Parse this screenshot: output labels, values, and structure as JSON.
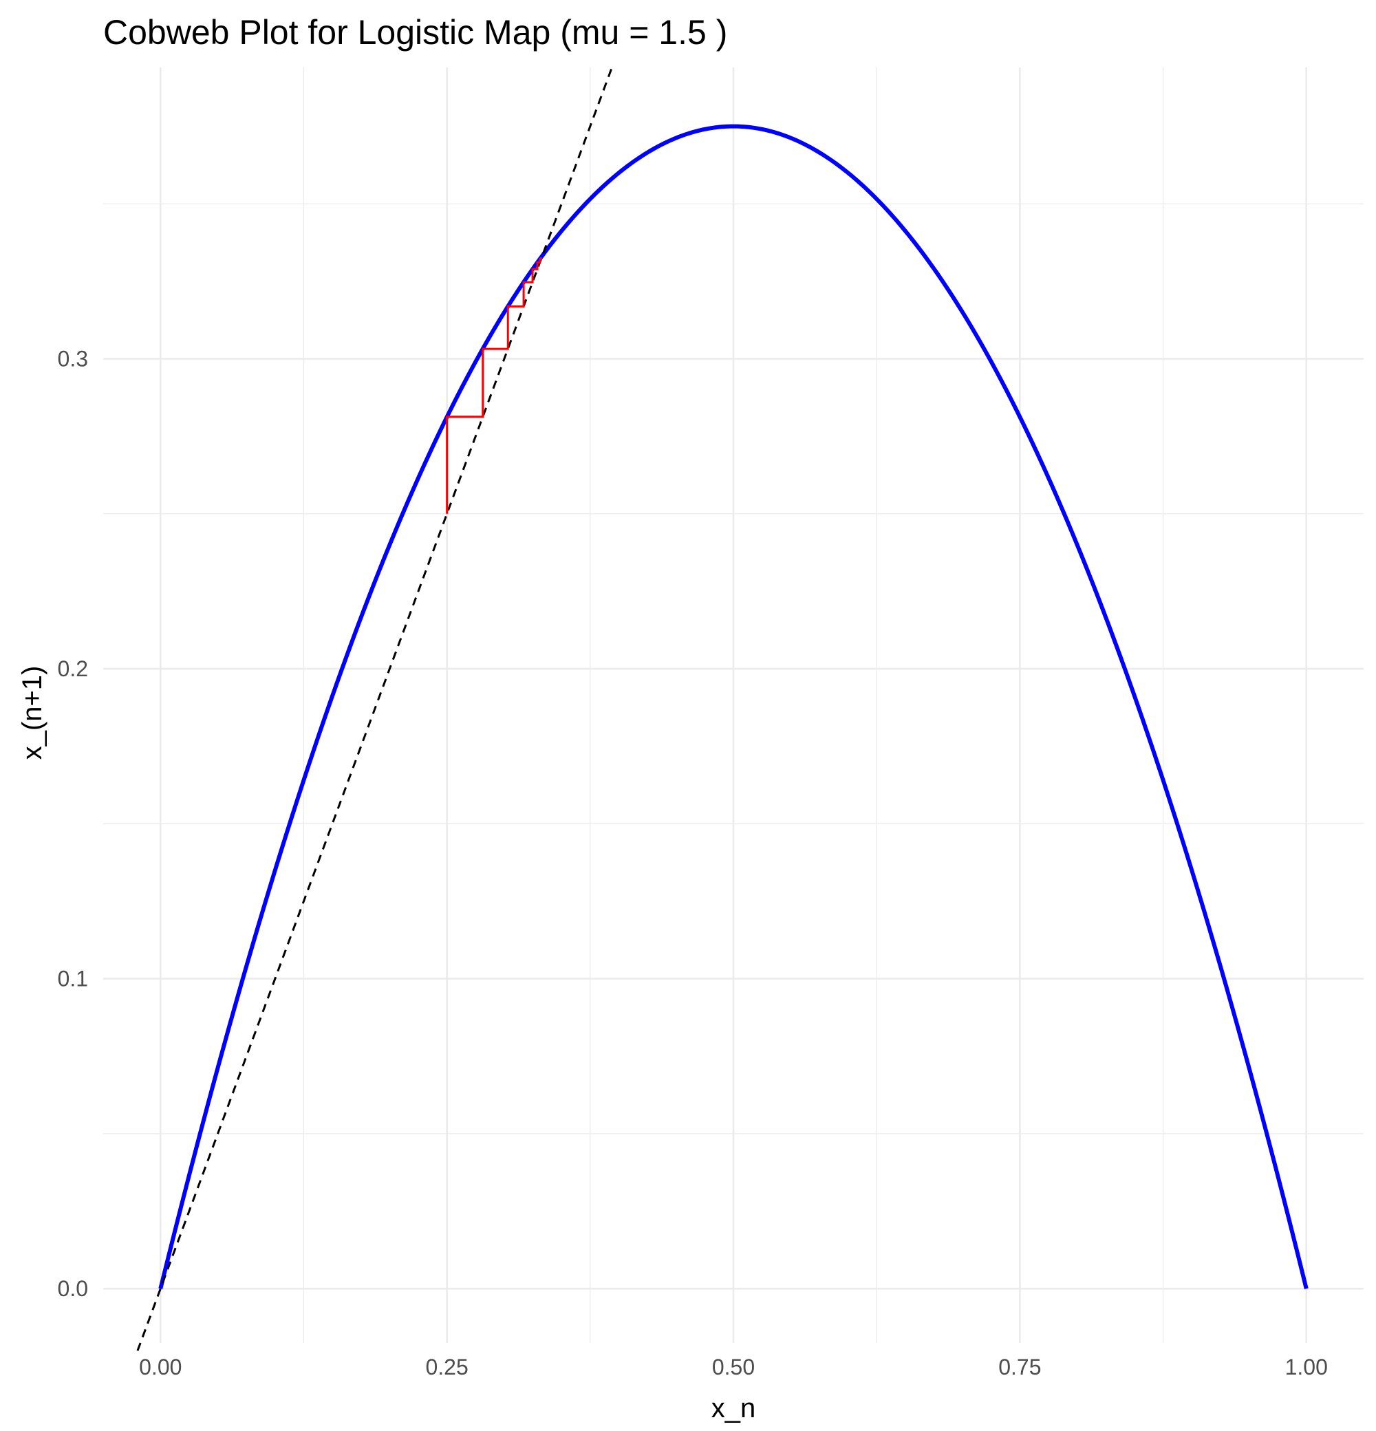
{
  "chart_data": {
    "type": "line",
    "title": "Cobweb Plot for Logistic Map (mu = 1.5 )",
    "xlabel": "x_n",
    "ylabel": "x_(n+1)",
    "xlim": [
      -0.05,
      1.05
    ],
    "ylim": [
      -0.0175,
      0.394
    ],
    "x_ticks": [
      0.0,
      0.25,
      0.5,
      0.75,
      1.0
    ],
    "x_tick_labels": [
      "0.00",
      "0.25",
      "0.50",
      "0.75",
      "1.00"
    ],
    "x_minor_ticks": [
      0.125,
      0.375,
      0.625,
      0.875
    ],
    "y_ticks": [
      0.0,
      0.1,
      0.2,
      0.3
    ],
    "y_tick_labels": [
      "0.0",
      "0.1",
      "0.2",
      "0.3"
    ],
    "y_minor_ticks": [
      0.05,
      0.15,
      0.25,
      0.35
    ],
    "grid": true,
    "legend": "none",
    "mu": 1.5,
    "series": [
      {
        "kind": "logistic-curve",
        "color": "#0000ff",
        "x_range": [
          0,
          1
        ],
        "formula": "y = mu * x * (1 - x)"
      },
      {
        "kind": "identity-line",
        "color": "#000000",
        "dash": true,
        "x_range": [
          -0.02,
          0.394
        ]
      },
      {
        "kind": "cobweb-path",
        "color": "#ff0000",
        "points": [
          [
            0.25,
            0.25
          ],
          [
            0.25,
            0.2813
          ],
          [
            0.2813,
            0.2813
          ],
          [
            0.2813,
            0.3032
          ],
          [
            0.3032,
            0.3032
          ],
          [
            0.3032,
            0.3169
          ],
          [
            0.3169,
            0.3169
          ],
          [
            0.3169,
            0.3247
          ],
          [
            0.3247,
            0.3247
          ],
          [
            0.3247,
            0.3289
          ],
          [
            0.3289,
            0.3289
          ],
          [
            0.3289,
            0.3311
          ],
          [
            0.3311,
            0.3311
          ],
          [
            0.3311,
            0.3322
          ],
          [
            0.3322,
            0.3322
          ],
          [
            0.3322,
            0.3328
          ]
        ]
      }
    ]
  }
}
